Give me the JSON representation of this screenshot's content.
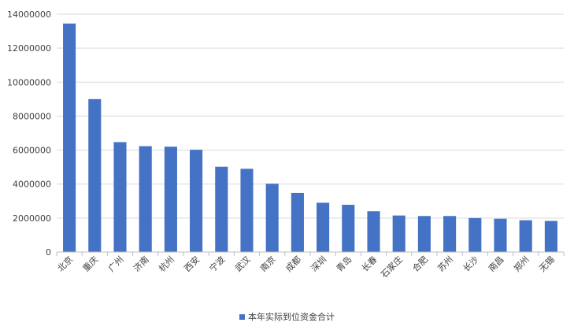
{
  "chart_data": {
    "type": "bar",
    "categories": [
      "北京",
      "重庆",
      "广州",
      "济南",
      "杭州",
      "西安",
      "宁波",
      "武汉",
      "南京",
      "成都",
      "深圳",
      "青岛",
      "长春",
      "石家庄",
      "合肥",
      "苏州",
      "长沙",
      "南昌",
      "郑州",
      "无锡"
    ],
    "series": [
      {
        "name": "本年实际到位资金合计",
        "color": "#4472c4",
        "values": [
          13450000,
          9000000,
          6470000,
          6230000,
          6200000,
          6020000,
          5020000,
          4900000,
          4020000,
          3480000,
          2900000,
          2780000,
          2400000,
          2150000,
          2120000,
          2120000,
          2000000,
          1960000,
          1870000,
          1830000
        ]
      }
    ],
    "ylim": [
      0,
      14000000
    ],
    "yticks": [
      "0",
      "2000000",
      "4000000",
      "6000000",
      "8000000",
      "10000000",
      "12000000",
      "14000000"
    ],
    "title": "",
    "xlabel": "",
    "ylabel": "",
    "grid": true,
    "legend_position": "bottom"
  }
}
